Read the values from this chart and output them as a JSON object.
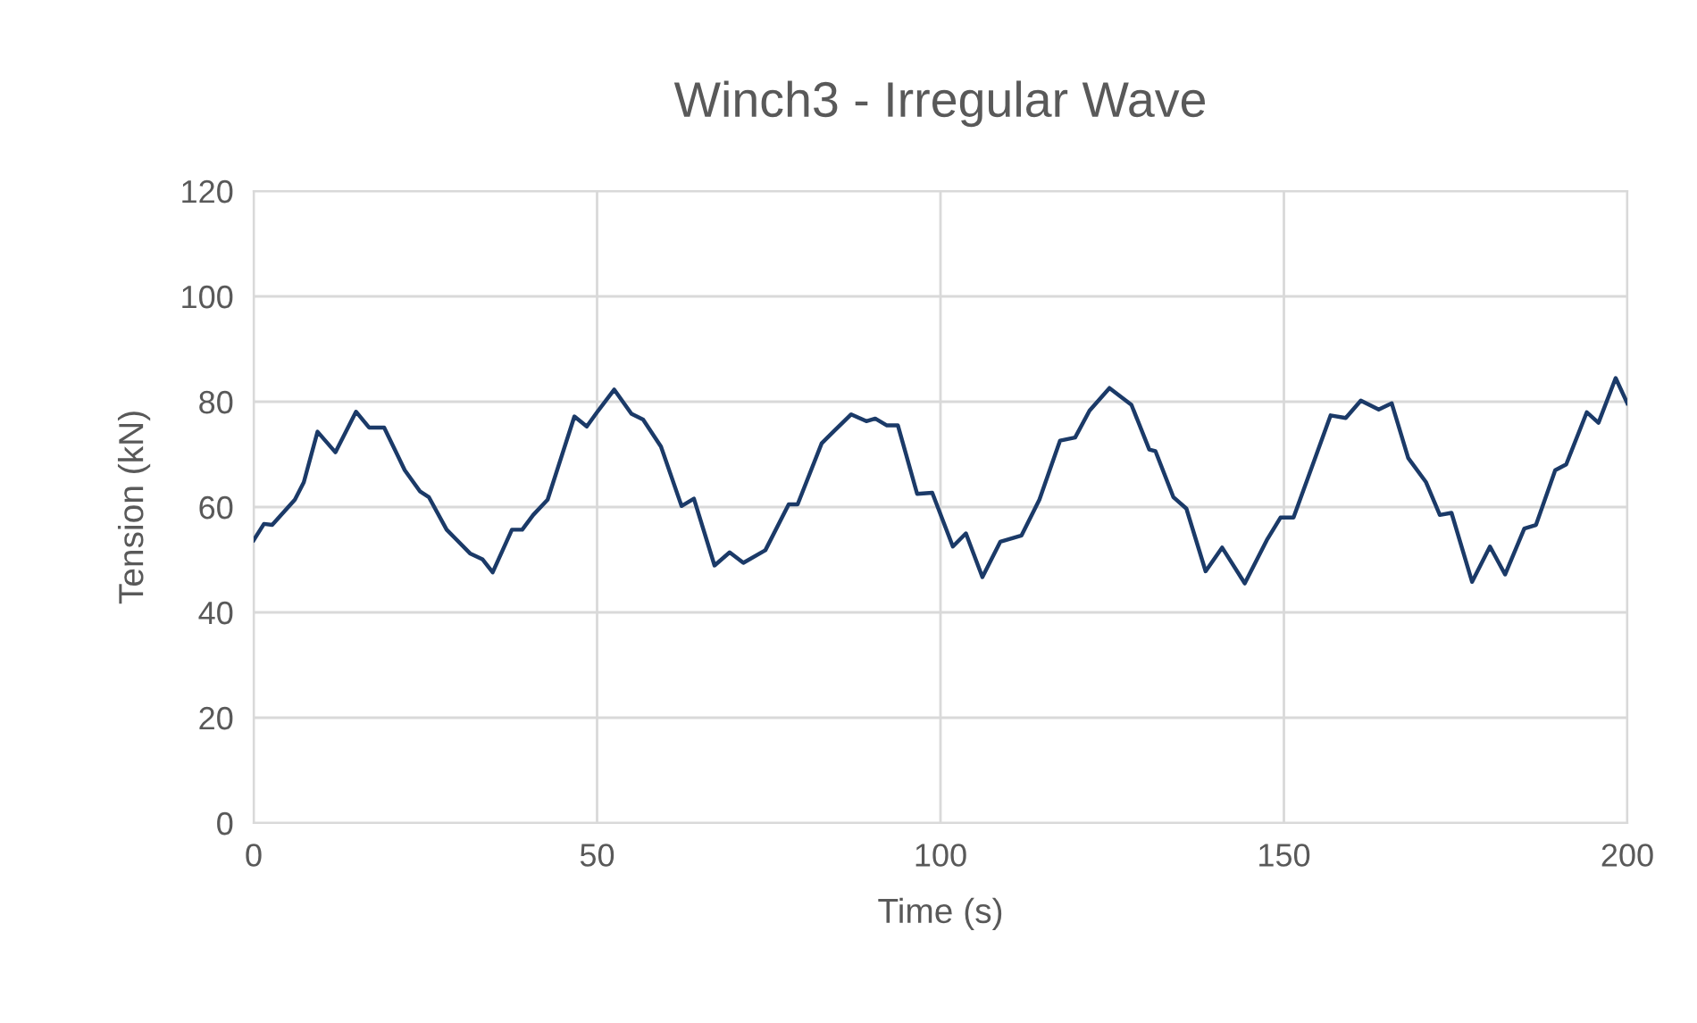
{
  "chart_data": {
    "type": "line",
    "title": "Winch3 - Irregular Wave",
    "xlabel": "Time (s)",
    "ylabel": "Tension (kN)",
    "xlim": [
      0,
      200
    ],
    "xticks": [
      0,
      50,
      100,
      150,
      200
    ],
    "ylim": [
      0,
      120
    ],
    "yticks": [
      0,
      20,
      40,
      60,
      80,
      100,
      120
    ],
    "grid": true,
    "marker": "none",
    "line_style": "solid",
    "series": [
      {
        "color": "#1b3a68",
        "x": [
          0,
          1.5,
          2.7,
          6,
          7.3,
          9.3,
          11.9,
          14.9,
          16.8,
          19,
          22,
          24.2,
          25.5,
          28.1,
          31.5,
          33.3,
          34.8,
          37.6,
          39.1,
          40.7,
          42.8,
          46.7,
          48.5,
          50,
          52.5,
          55,
          56.7,
          59.3,
          62.3,
          64.1,
          67.1,
          69.3,
          71.3,
          74.5,
          77.9,
          79.2,
          82.7,
          84.4,
          87,
          89.2,
          90.5,
          92.2,
          93.8,
          96.6,
          98.8,
          101.8,
          103.7,
          106.1,
          108.7,
          111.8,
          114.4,
          117.4,
          119.6,
          121.7,
          124.6,
          127.8,
          130.4,
          131.3,
          133.9,
          135.8,
          138.6,
          141,
          144.3,
          147.5,
          149.5,
          151.4,
          156.8,
          159,
          161.2,
          163.8,
          165.7,
          168.1,
          170.7,
          172.7,
          174.4,
          177.4,
          180,
          182.2,
          185,
          186.7,
          189.5,
          191.1,
          194.1,
          195.8,
          198.3,
          200
        ],
        "values": [
          53.7,
          56.8,
          56.6,
          61.4,
          64.7,
          74.3,
          70.4,
          78.1,
          75.1,
          75.1,
          67,
          63,
          61.9,
          55.7,
          51.2,
          50.1,
          47.6,
          55.7,
          55.7,
          58.5,
          61.4,
          77.2,
          75.3,
          78,
          82.3,
          77.7,
          76.6,
          71.5,
          60.2,
          61.6,
          48.9,
          51.4,
          49.4,
          51.8,
          60.5,
          60.5,
          72.1,
          74.3,
          77.6,
          76.3,
          76.8,
          75.5,
          75.5,
          62.5,
          62.7,
          52.5,
          55,
          46.7,
          53.4,
          54.6,
          61.4,
          72.6,
          73.2,
          78.3,
          82.6,
          79.4,
          70.9,
          70.6,
          61.9,
          59.7,
          47.8,
          52.3,
          45.5,
          53.7,
          58,
          58,
          77.4,
          76.9,
          80.2,
          78.5,
          79.7,
          69.3,
          64.7,
          58.5,
          58.9,
          45.8,
          52.5,
          47.2,
          55.9,
          56.6,
          67,
          68.1,
          78,
          76,
          84.5,
          79.7
        ]
      }
    ]
  }
}
